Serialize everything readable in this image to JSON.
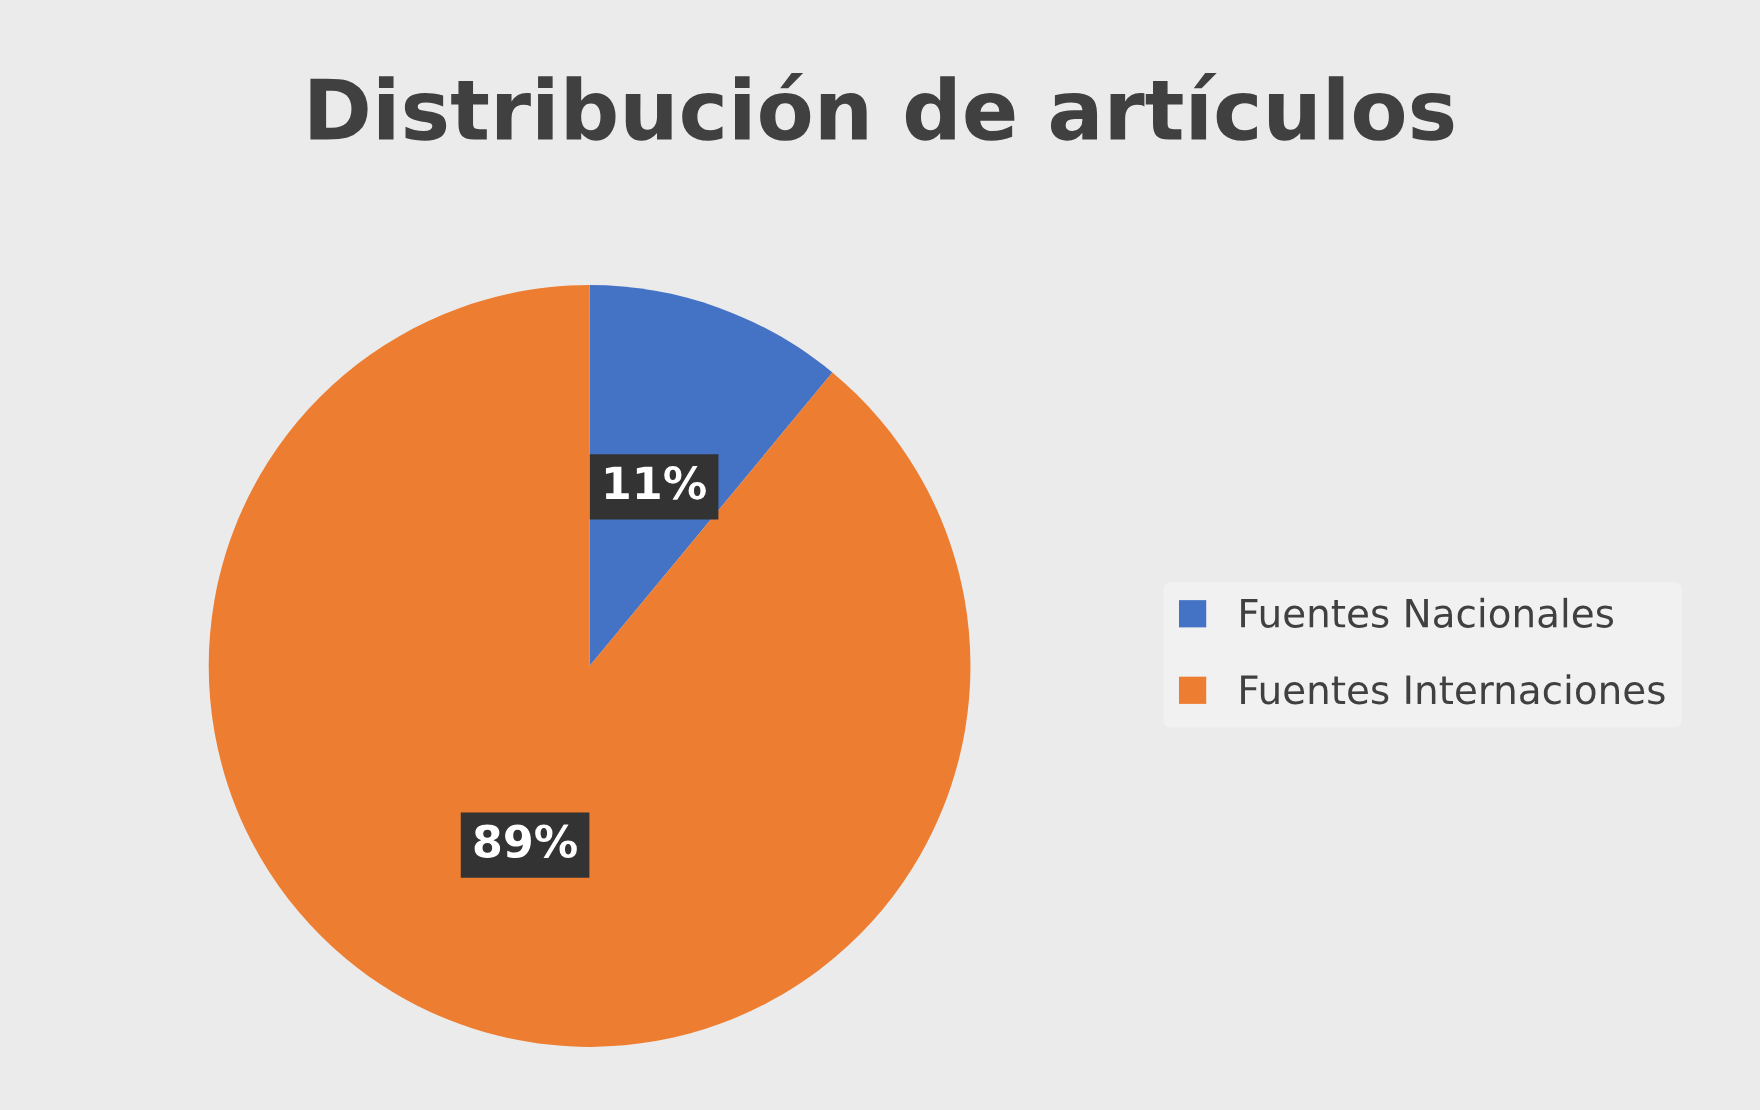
{
  "chart_data": {
    "type": "pie",
    "title": "Distribución de artículos",
    "categories": [
      "Fuentes Nacionales",
      "Fuentes Internaciones"
    ],
    "values": [
      11,
      89
    ],
    "colors": [
      "#4472c4",
      "#ed7d31"
    ],
    "value_labels": [
      "11%",
      "89%"
    ],
    "legend": "right"
  }
}
